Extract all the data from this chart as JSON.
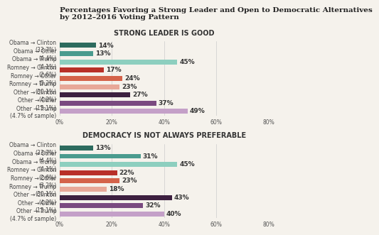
{
  "title": "Percentages Favoring a Strong Leader and Open to Democratic Alternatives\nby 2012–2016 Voting Pattern",
  "section1_title": "STRONG LEADER IS GOOD",
  "section2_title": "DEMOCRACY IS NOT ALWAYS PREFERABLE",
  "categories": [
    "Obama → Clinton\n(33.7%)",
    "Obama → Other\n(4.4%)",
    "Obama → Trump\n(4.1%)",
    "Romney → Clinton\n(2.6%)",
    "Romney → Other\n(3.2%)",
    "Romney → Trump\n(30.1%)",
    "Other → Clinton\n(4.2%)",
    "Other → Other\n(13.1%)",
    "Other → Trump\n(4.7% of sample)"
  ],
  "values1": [
    14,
    13,
    45,
    17,
    24,
    23,
    27,
    37,
    49
  ],
  "values2": [
    13,
    31,
    45,
    22,
    23,
    18,
    43,
    32,
    40
  ],
  "colors": [
    "#2d6b5e",
    "#4a9b8e",
    "#8dcfbf",
    "#b83028",
    "#d4634a",
    "#e8a898",
    "#3d2040",
    "#7a4a80",
    "#c4a0c8"
  ],
  "xlim": [
    0,
    80
  ],
  "xticks": [
    0,
    20,
    40,
    60,
    80
  ],
  "xticklabels": [
    "0%",
    "20%",
    "40%",
    "60%",
    "80%"
  ],
  "bg_color": "#f5f2ec",
  "bar_height": 0.6,
  "title_fontsize": 7.5,
  "label_fontsize": 5.5,
  "value_fontsize": 6.5,
  "section_fontsize": 7
}
